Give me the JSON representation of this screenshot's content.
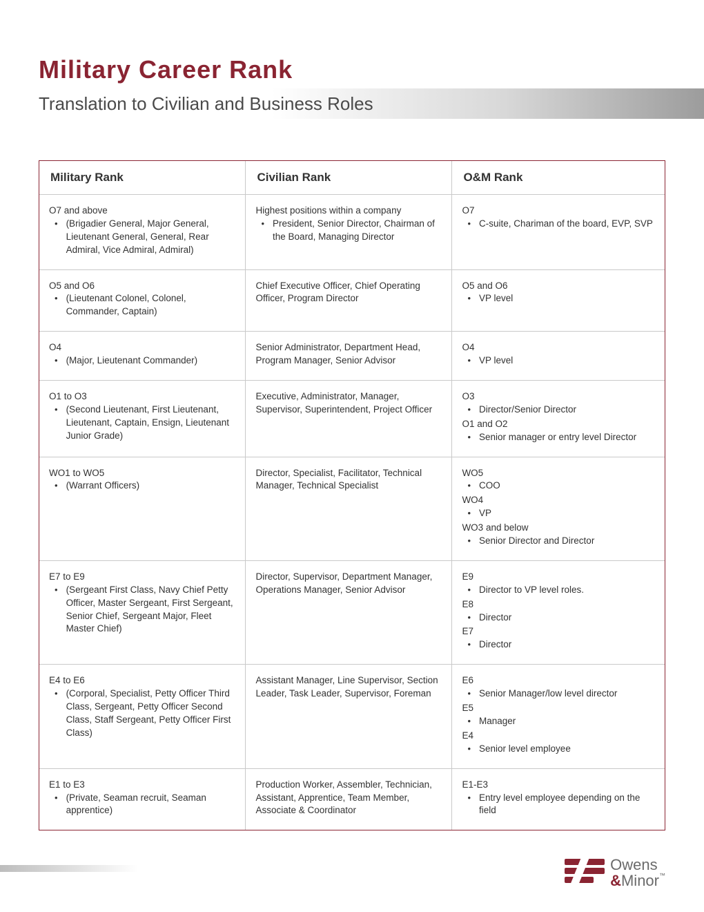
{
  "colors": {
    "accent": "#8a2432",
    "text": "#333333",
    "rule": "#c9c9c9",
    "band_start": "#ffffff",
    "band_mid": "#d8d8d8",
    "band_end": "#9c9c9c",
    "footer_band_start": "#bdbdbd",
    "logo_gray": "#6b6b6b"
  },
  "typography": {
    "title_size_pt": 27,
    "subtitle_size_pt": 20,
    "header_size_pt": 13,
    "body_size_pt": 10
  },
  "header": {
    "title": "Military Career Rank",
    "subtitle": "Translation to Civilian and Business Roles"
  },
  "table": {
    "columns": [
      "Military Rank",
      "Civilian Rank",
      "O&M Rank"
    ],
    "rows": [
      {
        "military": [
          {
            "head": "O7 and above",
            "bullets": [
              "(Brigadier General, Major General, Lieutenant General, General, Rear Admiral, Vice Admiral, Admiral)"
            ]
          }
        ],
        "civilian": [
          {
            "head": "Highest positions within a company",
            "bullets": [
              "President, Senior Director, Chairman of the Board, Managing Director"
            ]
          }
        ],
        "om": [
          {
            "head": "O7",
            "bullets": [
              "C-suite, Chariman of the board, EVP, SVP"
            ]
          }
        ]
      },
      {
        "military": [
          {
            "head": "O5 and O6",
            "bullets": [
              "(Lieutenant Colonel, Colonel, Commander, Captain)"
            ]
          }
        ],
        "civilian": [
          {
            "head": "Chief Executive Officer, Chief Operating Officer, Program Director",
            "bullets": []
          }
        ],
        "om": [
          {
            "head": "O5 and O6",
            "bullets": [
              "VP level"
            ]
          }
        ]
      },
      {
        "military": [
          {
            "head": "O4",
            "bullets": [
              "(Major, Lieutenant Commander)"
            ]
          }
        ],
        "civilian": [
          {
            "head": "Senior Administrator, Department Head, Program Manager, Senior Advisor",
            "bullets": []
          }
        ],
        "om": [
          {
            "head": "O4",
            "bullets": [
              "VP level"
            ]
          }
        ]
      },
      {
        "military": [
          {
            "head": "O1 to O3",
            "bullets": [
              "(Second Lieutenant, First Lieutenant, Lieutenant, Captain, Ensign, Lieutenant Junior Grade)"
            ]
          }
        ],
        "civilian": [
          {
            "head": "Executive, Administrator, Manager, Supervisor, Superintendent, Project Officer",
            "bullets": []
          }
        ],
        "om": [
          {
            "head": "O3",
            "bullets": [
              "Director/Senior Director"
            ]
          },
          {
            "head": "O1 and O2",
            "bullets": [
              "Senior manager or entry level Director"
            ]
          }
        ]
      },
      {
        "military": [
          {
            "head": "WO1 to WO5",
            "bullets": [
              "(Warrant Officers)"
            ]
          }
        ],
        "civilian": [
          {
            "head": "Director, Specialist, Facilitator, Technical Manager, Technical Specialist",
            "bullets": []
          }
        ],
        "om": [
          {
            "head": "WO5",
            "bullets": [
              "COO"
            ]
          },
          {
            "head": "WO4",
            "bullets": [
              "VP"
            ]
          },
          {
            "head": "WO3 and below",
            "bullets": [
              "Senior Director and Director"
            ]
          }
        ]
      },
      {
        "military": [
          {
            "head": "E7 to E9",
            "bullets": [
              "(Sergeant First Class, Navy Chief Petty Officer, Master Sergeant, First Sergeant, Senior Chief, Sergeant Major, Fleet Master Chief)"
            ]
          }
        ],
        "civilian": [
          {
            "head": "Director, Supervisor, Department Manager, Operations Manager, Senior Advisor",
            "bullets": []
          }
        ],
        "om": [
          {
            "head": "E9",
            "bullets": [
              "Director to VP level roles."
            ]
          },
          {
            "head": "E8",
            "bullets": [
              "Director"
            ]
          },
          {
            "head": "E7",
            "bullets": [
              "Director"
            ]
          }
        ]
      },
      {
        "military": [
          {
            "head": "E4 to E6",
            "bullets": [
              "(Corporal, Specialist, Petty Officer Third Class, Sergeant, Petty Officer Second Class, Staff Sergeant, Petty Officer First Class)"
            ]
          }
        ],
        "civilian": [
          {
            "head": "Assistant Manager, Line Supervisor, Section Leader, Task Leader, Supervisor, Foreman",
            "bullets": []
          }
        ],
        "om": [
          {
            "head": "E6",
            "bullets": [
              "Senior Manager/low level director"
            ]
          },
          {
            "head": "E5",
            "bullets": [
              "Manager"
            ]
          },
          {
            "head": "E4",
            "bullets": [
              "Senior level employee"
            ]
          }
        ]
      },
      {
        "military": [
          {
            "head": "E1 to E3",
            "bullets": [
              "(Private, Seaman recruit, Seaman apprentice)"
            ]
          }
        ],
        "civilian": [
          {
            "head": "Production Worker, Assembler, Technician, Assistant, Apprentice, Team Member, Associate & Coordinator",
            "bullets": []
          }
        ],
        "om": [
          {
            "head": "E1-E3",
            "bullets": [
              "Entry level employee depending on the field"
            ]
          }
        ]
      }
    ]
  },
  "logo": {
    "line1": "Owens",
    "amp": "&",
    "line2": "Minor",
    "tm": "™"
  }
}
